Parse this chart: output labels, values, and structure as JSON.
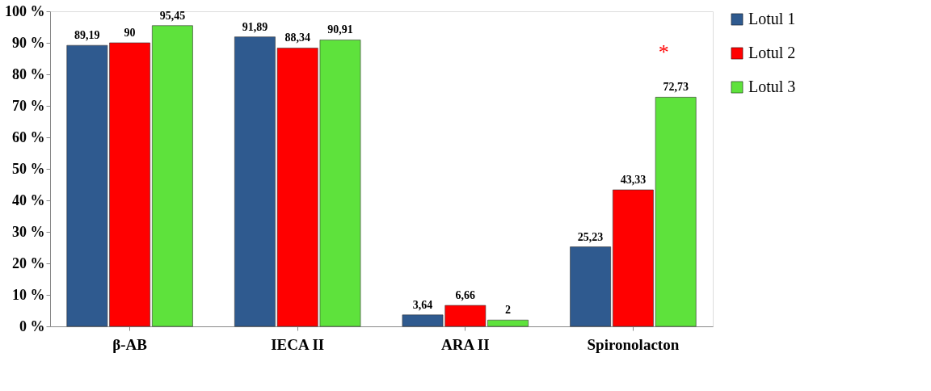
{
  "chart_data": {
    "type": "bar",
    "categories": [
      "β-AB",
      "IECA II",
      "ARA II",
      "Spironolacton"
    ],
    "series": [
      {
        "name": "Lotul 1",
        "color": "#2f5a8f",
        "values": [
          89.19,
          91.89,
          3.64,
          25.23
        ],
        "value_labels": [
          "89,19",
          "91,89",
          "3,64",
          "25,23"
        ]
      },
      {
        "name": "Lotul 2",
        "color": "#ff0000",
        "values": [
          90,
          88.34,
          6.66,
          43.33
        ],
        "value_labels": [
          "90",
          "88,34",
          "6,66",
          "43,33"
        ]
      },
      {
        "name": "Lotul 3",
        "color": "#5ee23c",
        "values": [
          95.45,
          90.91,
          2,
          72.73
        ],
        "value_labels": [
          "95,45",
          "90,91",
          "2",
          "72,73"
        ]
      }
    ],
    "ylim": [
      0,
      100
    ],
    "yticks": [
      {
        "value": 0,
        "label": "0 %"
      },
      {
        "value": 10,
        "label": "10 %"
      },
      {
        "value": 20,
        "label": "20 %"
      },
      {
        "value": 30,
        "label": "30 %"
      },
      {
        "value": 40,
        "label": "40 %"
      },
      {
        "value": 50,
        "label": "50 %"
      },
      {
        "value": 60,
        "label": "60 %"
      },
      {
        "value": 70,
        "label": "70 %"
      },
      {
        "value": 80,
        "label": "80 %"
      },
      {
        "value": 90,
        "label": "90 %"
      },
      {
        "value": 100,
        "label": "100 %"
      }
    ],
    "annotations": [
      "*"
    ],
    "legend": "right",
    "grid": false
  }
}
